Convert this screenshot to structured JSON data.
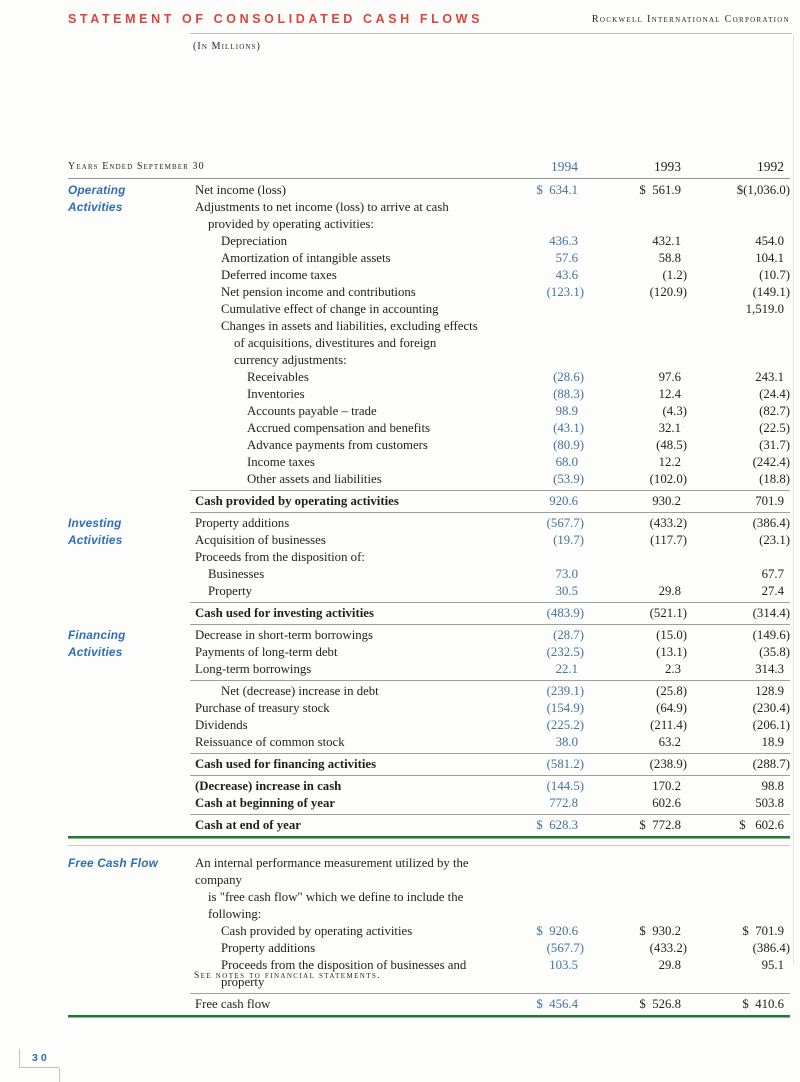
{
  "page": {
    "title": "STATEMENT OF CONSOLIDATED CASH FLOWS",
    "corporation": "Rockwell International Corporation",
    "units": "(In Millions)",
    "footnote": "See notes to financial statements.",
    "page_number": "30"
  },
  "colors": {
    "title_red": "#dd433c",
    "label_blue": "#2e6cb6",
    "number_blue": "#43719f",
    "rule_green": "#1e7b33"
  },
  "table": {
    "header": {
      "label": "Years Ended September 30",
      "years": [
        "1994",
        "1993",
        "1992"
      ]
    },
    "rows": [
      {
        "side": "Operating",
        "label": "Net income (loss)",
        "indent": 0,
        "v1994": "$  634.1",
        "v1993": "$  561.9",
        "v1992": "$(1,036.0)"
      },
      {
        "side": "Activities",
        "label": "Adjustments to net income (loss) to arrive at cash",
        "indent": 0
      },
      {
        "label": "provided by operating activities:",
        "indent": 1
      },
      {
        "label": "Depreciation",
        "indent": 2,
        "v1994": "436.3",
        "v1993": "432.1",
        "v1992": "454.0"
      },
      {
        "label": "Amortization of intangible assets",
        "indent": 2,
        "v1994": "57.6",
        "v1993": "58.8",
        "v1992": "104.1"
      },
      {
        "label": "Deferred income taxes",
        "indent": 2,
        "v1994": "43.6",
        "v1993": "(1.2)",
        "v1992": "(10.7)"
      },
      {
        "label": "Net pension income and contributions",
        "indent": 2,
        "v1994": "(123.1)",
        "v1993": "(120.9)",
        "v1992": "(149.1)"
      },
      {
        "label": "Cumulative effect of change in accounting",
        "indent": 2,
        "v1992": "1,519.0"
      },
      {
        "label": "Changes in assets and liabilities, excluding effects",
        "indent": 2
      },
      {
        "label": "of acquisitions, divestitures and foreign",
        "indent": 3
      },
      {
        "label": "currency adjustments:",
        "indent": 3
      },
      {
        "label": "Receivables",
        "indent": 4,
        "v1994": "(28.6)",
        "v1993": "97.6",
        "v1992": "243.1"
      },
      {
        "label": "Inventories",
        "indent": 4,
        "v1994": "(88.3)",
        "v1993": "12.4",
        "v1992": "(24.4)"
      },
      {
        "label": "Accounts payable – trade",
        "indent": 4,
        "v1994": "98.9",
        "v1993": "(4.3)",
        "v1992": "(82.7)"
      },
      {
        "label": "Accrued compensation and benefits",
        "indent": 4,
        "v1994": "(43.1)",
        "v1993": "32.1",
        "v1992": "(22.5)"
      },
      {
        "label": "Advance payments from customers",
        "indent": 4,
        "v1994": "(80.9)",
        "v1993": "(48.5)",
        "v1992": "(31.7)"
      },
      {
        "label": "Income taxes",
        "indent": 4,
        "v1994": "68.0",
        "v1993": "12.2",
        "v1992": "(242.4)"
      },
      {
        "label": "Other assets and liabilities",
        "indent": 4,
        "v1994": "(53.9)",
        "v1993": "(102.0)",
        "v1992": "(18.8)"
      },
      {
        "label": "Cash provided by operating activities",
        "indent": 0,
        "bold": true,
        "rule": true,
        "v1994": "920.6",
        "v1993": "930.2",
        "v1992": "701.9"
      },
      {
        "side": "Investing",
        "label": "Property additions",
        "indent": 0,
        "rule": true,
        "v1994": "(567.7)",
        "v1993": "(433.2)",
        "v1992": "(386.4)"
      },
      {
        "side": "Activities",
        "label": "Acquisition of businesses",
        "indent": 0,
        "v1994": "(19.7)",
        "v1993": "(117.7)",
        "v1992": "(23.1)"
      },
      {
        "label": "Proceeds from the disposition of:",
        "indent": 0
      },
      {
        "label": "Businesses",
        "indent": 1,
        "v1994": "73.0",
        "v1992": "67.7"
      },
      {
        "label": "Property",
        "indent": 1,
        "v1994": "30.5",
        "v1993": "29.8",
        "v1992": "27.4"
      },
      {
        "label": "Cash used for investing activities",
        "indent": 0,
        "bold": true,
        "rule": true,
        "v1994": "(483.9)",
        "v1993": "(521.1)",
        "v1992": "(314.4)"
      },
      {
        "side": "Financing",
        "label": "Decrease in short-term borrowings",
        "indent": 0,
        "rule": true,
        "v1994": "(28.7)",
        "v1993": "(15.0)",
        "v1992": "(149.6)"
      },
      {
        "side": "Activities",
        "label": "Payments of long-term debt",
        "indent": 0,
        "v1994": "(232.5)",
        "v1993": "(13.1)",
        "v1992": "(35.8)"
      },
      {
        "label": "Long-term borrowings",
        "indent": 0,
        "v1994": "22.1",
        "v1993": "2.3",
        "v1992": "314.3"
      },
      {
        "label": "Net (decrease) increase in debt",
        "indent": 2,
        "rule": true,
        "v1994": "(239.1)",
        "v1993": "(25.8)",
        "v1992": "128.9"
      },
      {
        "label": "Purchase of treasury stock",
        "indent": 0,
        "v1994": "(154.9)",
        "v1993": "(64.9)",
        "v1992": "(230.4)"
      },
      {
        "label": "Dividends",
        "indent": 0,
        "v1994": "(225.2)",
        "v1993": "(211.4)",
        "v1992": "(206.1)"
      },
      {
        "label": "Reissuance of common stock",
        "indent": 0,
        "v1994": "38.0",
        "v1993": "63.2",
        "v1992": "18.9"
      },
      {
        "label": "Cash used for financing activities",
        "indent": 0,
        "bold": true,
        "rule": true,
        "v1994": "(581.2)",
        "v1993": "(238.9)",
        "v1992": "(288.7)"
      },
      {
        "label": "(Decrease) increase in cash",
        "indent": 0,
        "bold": true,
        "rule": true,
        "v1994": "(144.5)",
        "v1993": "170.2",
        "v1992": "98.8"
      },
      {
        "label": "Cash at beginning of year",
        "indent": 0,
        "bold": true,
        "v1994": "772.8",
        "v1993": "602.6",
        "v1992": "503.8"
      },
      {
        "label": "Cash at end of year",
        "indent": 0,
        "bold": true,
        "rule": true,
        "v1994": "$  628.3",
        "v1993": "$  772.8",
        "v1992": "$   602.6"
      }
    ],
    "fcf_rows": [
      {
        "side": "Free Cash Flow",
        "label": "An internal performance measurement utilized by the company",
        "indent": 0
      },
      {
        "label": "is \"free cash flow\" which we define to include the following:",
        "indent": 1
      },
      {
        "label": "Cash provided by operating activities",
        "indent": 2,
        "v1994": "$  920.6",
        "v1993": "$  930.2",
        "v1992": "$  701.9"
      },
      {
        "label": "Property additions",
        "indent": 2,
        "v1994": "(567.7)",
        "v1993": "(433.2)",
        "v1992": "(386.4)"
      },
      {
        "label": "Proceeds from the disposition of businesses and property",
        "indent": 2,
        "v1994": "103.5",
        "v1993": "29.8",
        "v1992": "95.1"
      },
      {
        "label": "Free cash flow",
        "indent": 0,
        "rule": true,
        "v1994": "$  456.4",
        "v1993": "$  526.8",
        "v1992": "$  410.6"
      }
    ]
  }
}
